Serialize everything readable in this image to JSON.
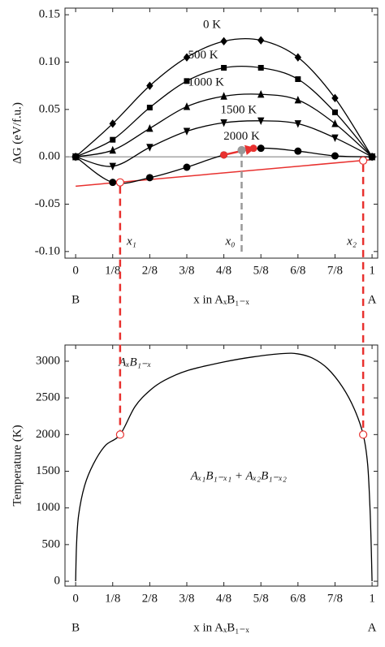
{
  "chart_data": [
    {
      "type": "line",
      "ylabel": "ΔG (eV/f.u.)",
      "xlabel": "x in AₓB₁₋ₓ",
      "end_labels": [
        "B",
        "A"
      ],
      "x": [
        0,
        0.125,
        0.25,
        0.375,
        0.5,
        0.625,
        0.75,
        0.875,
        1
      ],
      "xlim": [
        -0.036,
        1.019
      ],
      "ylim": [
        -0.107,
        0.157
      ],
      "xticks": [
        0,
        {
          "value": 0.125,
          "label": "1/8"
        },
        {
          "value": 0.25,
          "label": "2/8"
        },
        {
          "value": 0.375,
          "label": "3/8"
        },
        {
          "value": 0.5,
          "label": "4/8"
        },
        {
          "value": 0.625,
          "label": "5/8"
        },
        {
          "value": 0.75,
          "label": "6/8"
        },
        {
          "value": 0.875,
          "label": "7/8"
        },
        1
      ],
      "yticks": [
        0.15,
        {
          "value": 0.1,
          "label": "0.10"
        },
        0.05,
        {
          "value": 0,
          "label": "0.00"
        },
        -0.05,
        {
          "value": -0.1,
          "label": "-0.10"
        }
      ],
      "reference_line": {
        "value": 0,
        "color": "#888888"
      },
      "series": [
        {
          "name": "0 K",
          "color": "#000000",
          "marker": "diamond",
          "values": [
            0,
            0.035,
            0.075,
            0.105,
            0.122,
            0.123,
            0.105,
            0.062,
            0
          ]
        },
        {
          "name": "500 K",
          "color": "#000000",
          "marker": "square",
          "values": [
            0,
            0.018,
            0.052,
            0.08,
            0.094,
            0.094,
            0.082,
            0.047,
            0
          ]
        },
        {
          "name": "1000 K",
          "color": "#000000",
          "marker": "triangle-up",
          "values": [
            0,
            0.007,
            0.03,
            0.053,
            0.064,
            0.066,
            0.06,
            0.035,
            0
          ]
        },
        {
          "name": "1500 K",
          "color": "#000000",
          "marker": "triangle-down",
          "values": [
            0,
            -0.01,
            0.01,
            0.027,
            0.036,
            0.038,
            0.035,
            0.02,
            0
          ]
        },
        {
          "name": "2000 K",
          "color": "#000000",
          "marker": "circle",
          "values": [
            0,
            -0.027,
            -0.022,
            -0.011,
            0.002,
            0.009,
            0.006,
            0.001,
            0
          ]
        }
      ],
      "tangent": {
        "color": "#e8312f",
        "x": [
          0,
          1
        ],
        "values": [
          -0.031,
          -0.003
        ]
      },
      "arrow": {
        "color": "#e8312f",
        "x": [
          0.5,
          0.6
        ],
        "values": [
          0.002,
          0.009
        ]
      },
      "points": [
        {
          "label": "x₁",
          "x": 0.15,
          "y": -0.027,
          "color": "#e8312f"
        },
        {
          "label": "x₀",
          "x": 0.56,
          "y": 0.007,
          "color": "#999999"
        },
        {
          "label": "x₂",
          "x": 0.97,
          "y": -0.004,
          "color": "#e8312f"
        }
      ]
    },
    {
      "type": "line",
      "ylabel": "Temperature (K)",
      "xlabel": "x in AₓB₁₋ₓ",
      "end_labels": [
        "B",
        "A"
      ],
      "xlim": [
        -0.036,
        1.019
      ],
      "ylim": [
        -66,
        3221
      ],
      "xticks": [
        0,
        {
          "value": 0.125,
          "label": "1/8"
        },
        {
          "value": 0.25,
          "label": "2/8"
        },
        {
          "value": 0.375,
          "label": "3/8"
        },
        {
          "value": 0.5,
          "label": "4/8"
        },
        {
          "value": 0.625,
          "label": "5/8"
        },
        {
          "value": 0.75,
          "label": "6/8"
        },
        {
          "value": 0.875,
          "label": "7/8"
        },
        1
      ],
      "yticks": [
        0,
        500,
        1000,
        1500,
        2000,
        2500,
        3000
      ],
      "series": [
        {
          "color": "#000000",
          "x": [
            0,
            0.003,
            0.01,
            0.03,
            0.06,
            0.1,
            0.15,
            0.2,
            0.25,
            0.3,
            0.375,
            0.5,
            0.6,
            0.7,
            0.75,
            0.8,
            0.85,
            0.9,
            0.94,
            0.97,
            0.985,
            0.993,
            0.997,
            1
          ],
          "values": [
            0,
            500,
            900,
            1300,
            1600,
            1850,
            2000,
            2380,
            2600,
            2740,
            2870,
            2990,
            3060,
            3105,
            3100,
            3040,
            2900,
            2650,
            2350,
            2000,
            1600,
            1000,
            500,
            0
          ]
        }
      ],
      "annotations": [
        "AₓB₁₋ₓ",
        "Aₓ₁B₁₋ₓ₁ + Aₓ₂B₁₋ₓ₂"
      ],
      "points": [
        {
          "x": 0.15,
          "y": 2000,
          "color": "#e8312f"
        },
        {
          "x": 0.97,
          "y": 2000,
          "color": "#e8312f"
        }
      ]
    }
  ]
}
